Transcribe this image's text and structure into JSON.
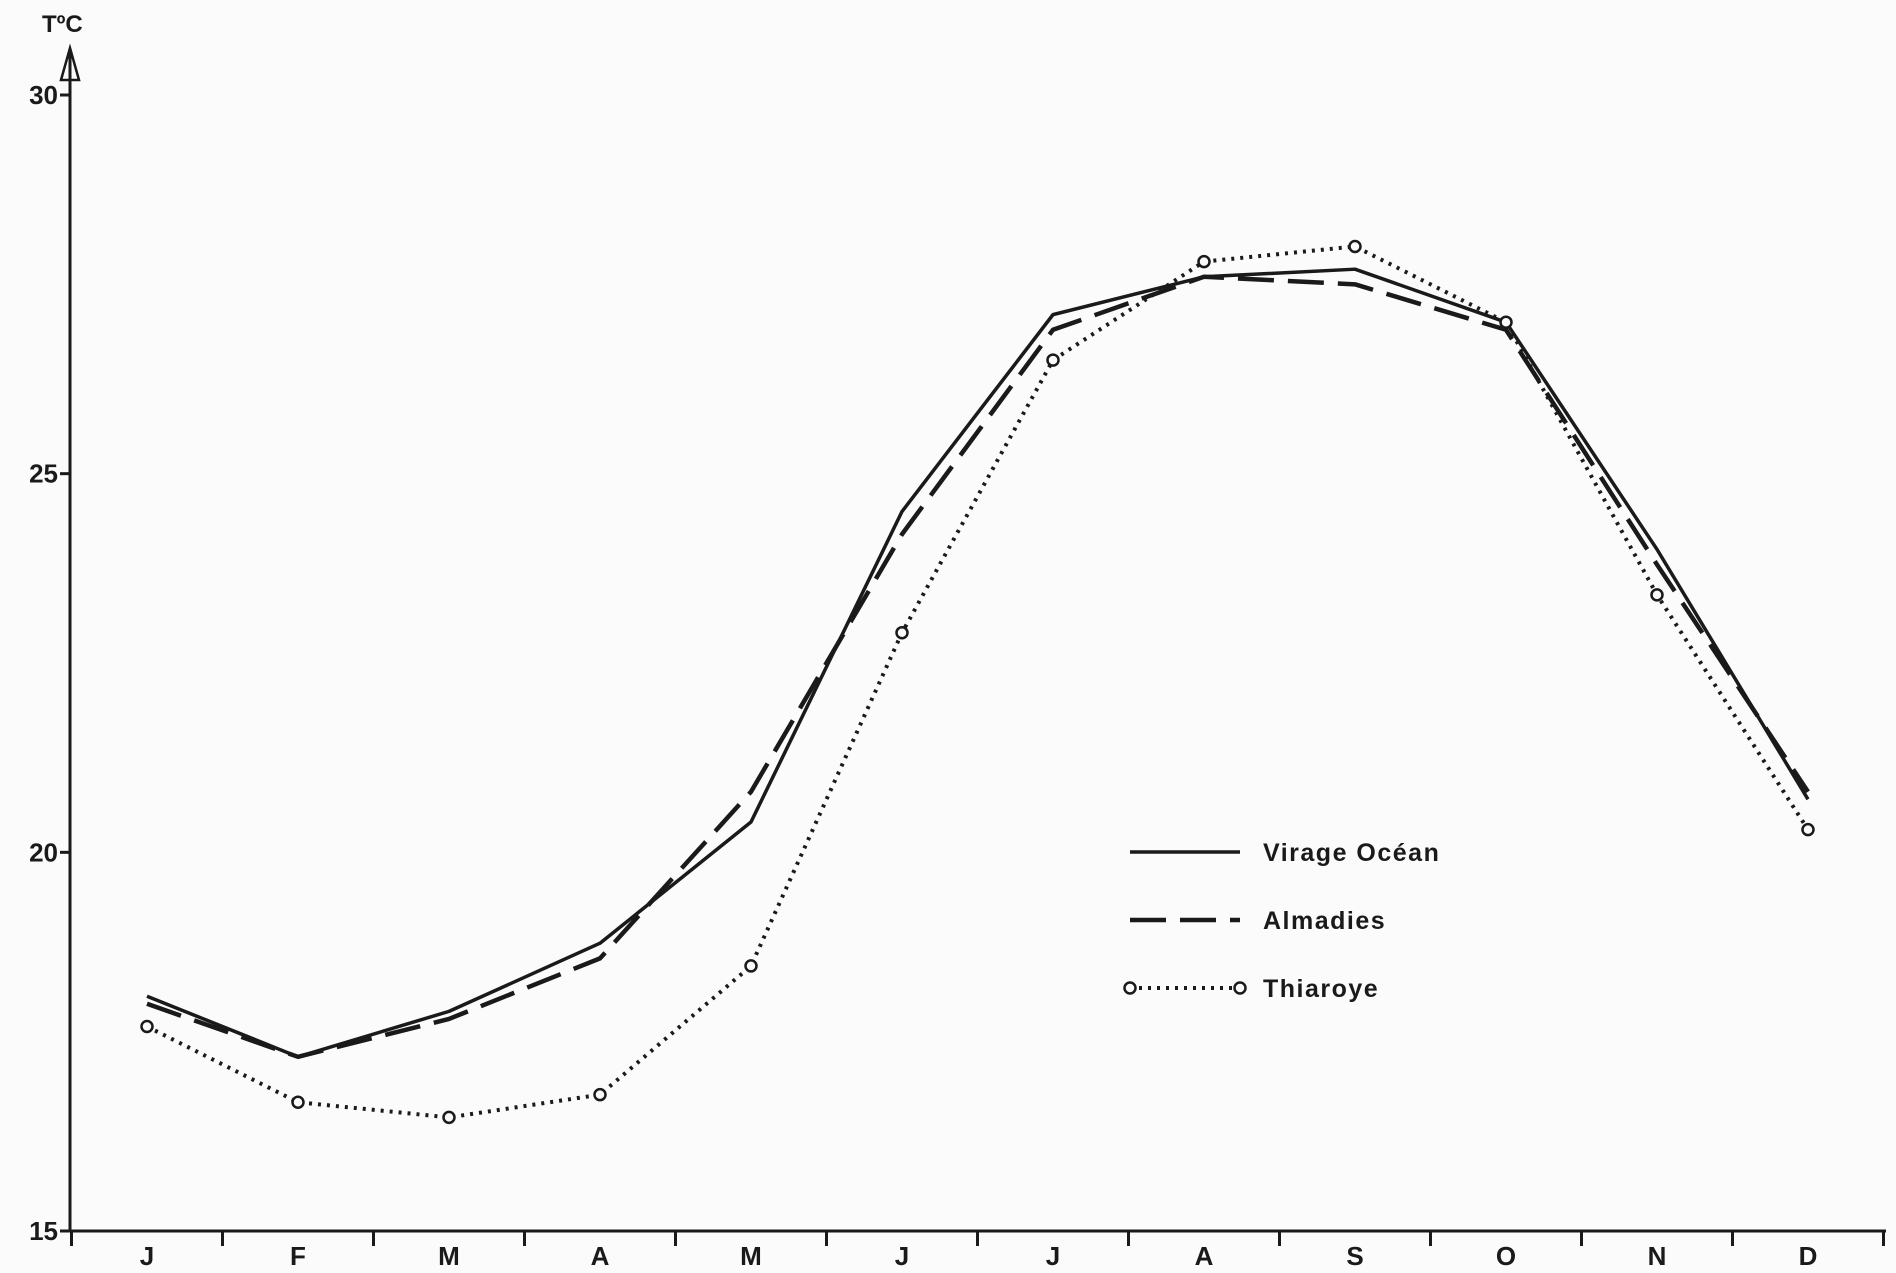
{
  "chart_data": {
    "type": "line",
    "title": "",
    "xlabel": "",
    "ylabel": "TºC",
    "ylim": [
      15,
      30
    ],
    "yticks": [
      "15",
      "20",
      "25",
      "30"
    ],
    "categories": [
      "J",
      "F",
      "M",
      "A",
      "M",
      "J",
      "J",
      "A",
      "S",
      "O",
      "N",
      "D"
    ],
    "grid": false,
    "legend_position": "center-right",
    "series": [
      {
        "name": "Virage Océan",
        "style": "solid",
        "color": "#1a1a1a",
        "values": [
          18.1,
          17.3,
          17.9,
          18.8,
          20.4,
          24.5,
          27.1,
          27.6,
          27.7,
          27.0,
          24.0,
          20.7
        ]
      },
      {
        "name": "Almadies",
        "style": "dashed",
        "color": "#1a1a1a",
        "values": [
          18.0,
          17.3,
          17.8,
          18.6,
          20.8,
          24.2,
          26.9,
          27.6,
          27.5,
          26.9,
          23.8,
          20.8
        ]
      },
      {
        "name": "Thiaroye",
        "style": "dotted-markers",
        "color": "#1a1a1a",
        "values": [
          17.7,
          16.7,
          16.5,
          16.8,
          18.5,
          22.9,
          26.5,
          27.8,
          28.0,
          27.0,
          23.4,
          20.3
        ]
      }
    ]
  }
}
